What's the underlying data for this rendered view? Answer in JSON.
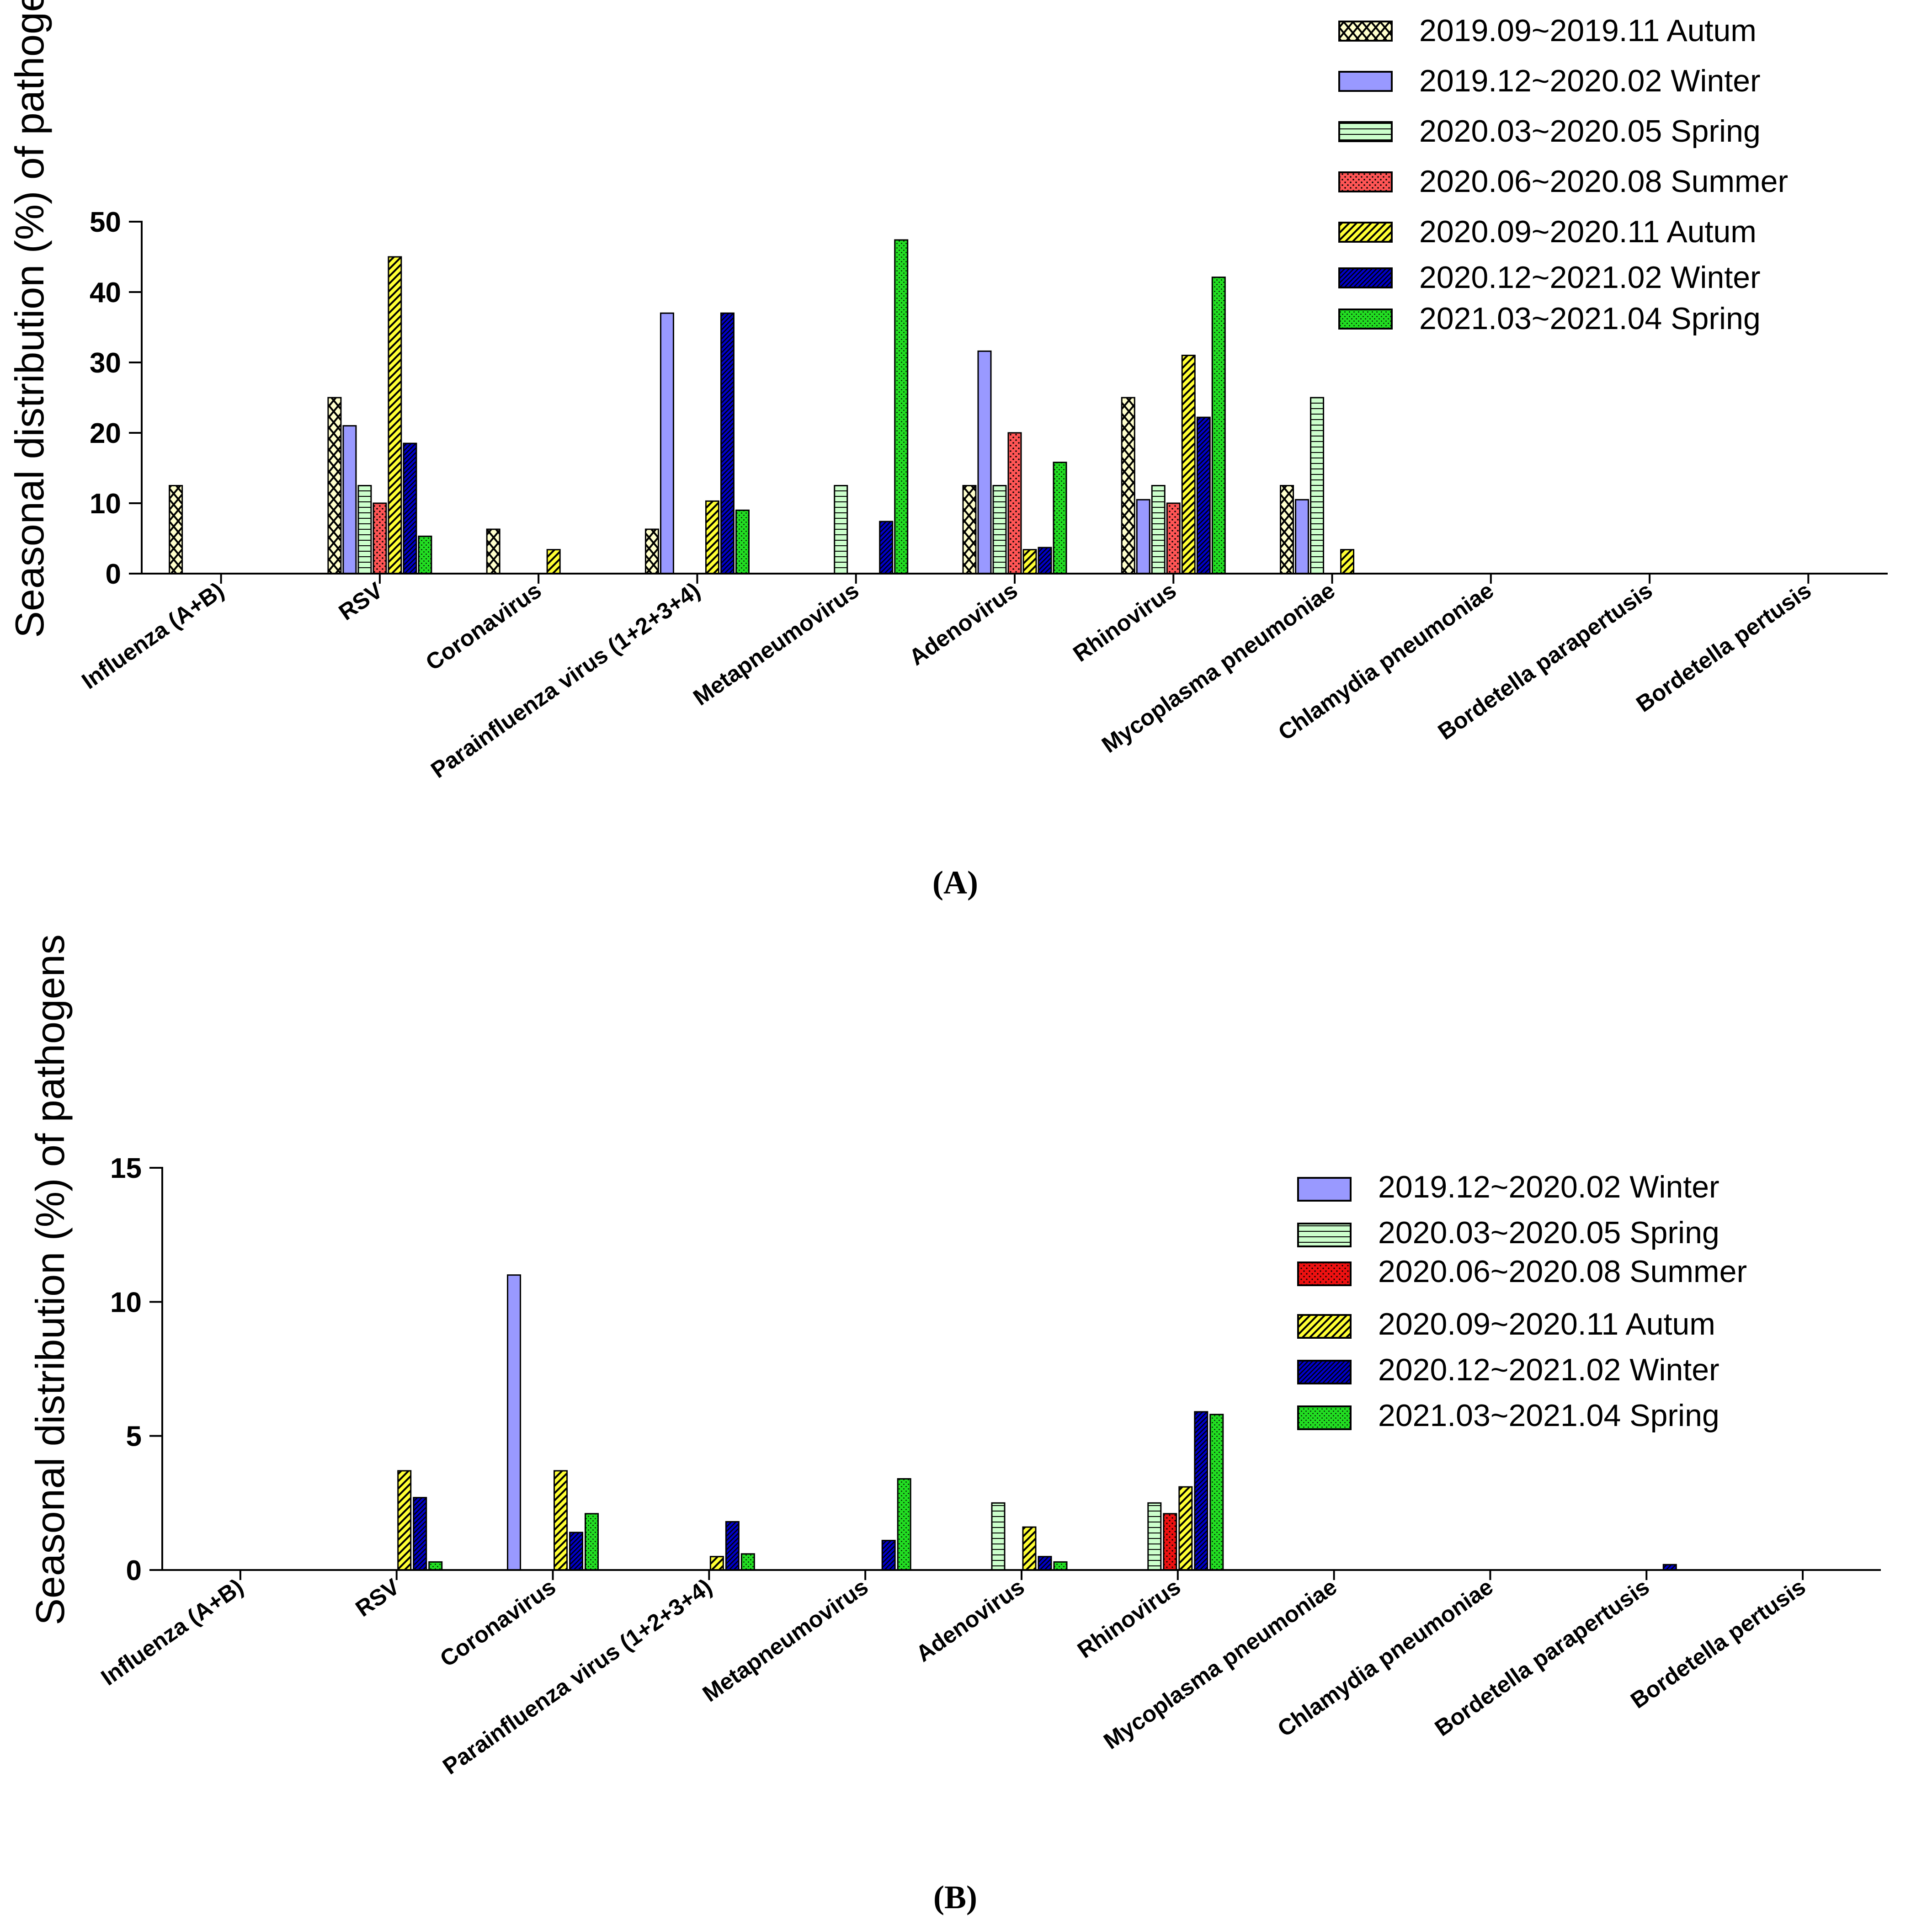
{
  "chart_data": [
    {
      "type": "bar",
      "panel_label": "(A)",
      "ylabel": "Seasonal distribution (%) of pathogens",
      "ylim": [
        0,
        50
      ],
      "yticks": [
        0,
        10,
        20,
        30,
        40,
        50
      ],
      "legend_position": "top-right",
      "categories": [
        "Influenza (A+B)",
        "RSV",
        "Coronavirus",
        "Parainfluenza virus (1+2+3+4)",
        "Metapneumovirus",
        "Adenovirus",
        "Rhinovirus",
        "Mycoplasma pneumoniae",
        "Chlamydia pneumoniae",
        "Bordetella parapertusis",
        "Bordetella pertusis"
      ],
      "series": [
        {
          "name": "2019.09~2019.11 Autum",
          "color": "#FFFFCC",
          "pattern": "crosshatch",
          "values": [
            12.5,
            25,
            6.3,
            6.3,
            0,
            12.5,
            25,
            12.5,
            0,
            0,
            0
          ]
        },
        {
          "name": "2019.12~2020.02 Winter",
          "color": "#9999FF",
          "pattern": "solid",
          "values": [
            0,
            21,
            0,
            37,
            0,
            31.6,
            10.5,
            10.5,
            0,
            0,
            0
          ]
        },
        {
          "name": "2020.03~2020.05 Spring",
          "color": "#CCFFCC",
          "pattern": "hlines",
          "values": [
            0,
            12.5,
            0,
            0,
            12.5,
            12.5,
            12.5,
            25,
            0,
            0,
            0
          ]
        },
        {
          "name": "2020.06~2020.08 Summer",
          "color": "#FF5555",
          "pattern": "dots",
          "values": [
            0,
            10,
            0,
            0,
            0,
            20,
            10,
            0,
            0,
            0,
            0
          ]
        },
        {
          "name": "2020.09~2020.11 Autum",
          "color": "#FFFF33",
          "pattern": "diag",
          "values": [
            0,
            45,
            3.4,
            10.3,
            0,
            3.4,
            31,
            3.4,
            0,
            0,
            0
          ]
        },
        {
          "name": "2020.12~2021.02 Winter",
          "color": "#0000CC",
          "pattern": "diagdense",
          "values": [
            0,
            18.5,
            0,
            37,
            7.4,
            3.7,
            22.2,
            0,
            0,
            0,
            0
          ]
        },
        {
          "name": "2021.03~2021.04 Spring",
          "color": "#22DD22",
          "pattern": "dotsfine",
          "values": [
            0,
            5.3,
            0,
            9,
            47.4,
            15.8,
            42.1,
            0,
            0,
            0,
            0
          ]
        }
      ]
    },
    {
      "type": "bar",
      "panel_label": "(B)",
      "ylabel": "Seasonal distribution (%) of pathogens",
      "ylim": [
        0,
        15
      ],
      "yticks": [
        0,
        5,
        10,
        15
      ],
      "legend_position": "right",
      "categories": [
        "Influenza (A+B)",
        "RSV",
        "Coronavirus",
        "Parainfluenza virus (1+2+3+4)",
        "Metapneumovirus",
        "Adenovirus",
        "Rhinovirus",
        "Mycoplasma pneumoniae",
        "Chlamydia pneumoniae",
        "Bordetella parapertusis",
        "Bordetella pertusis"
      ],
      "series": [
        {
          "name": "2019.12~2020.02 Winter",
          "color": "#9999FF",
          "pattern": "solid",
          "values": [
            0,
            0,
            11,
            0,
            0,
            0,
            0,
            0,
            0,
            0,
            0
          ]
        },
        {
          "name": "2020.03~2020.05 Spring",
          "color": "#CCFFCC",
          "pattern": "hlines",
          "values": [
            0,
            0,
            0,
            0,
            0,
            2.5,
            2.5,
            0,
            0,
            0,
            0
          ]
        },
        {
          "name": "2020.06~2020.08 Summer",
          "color": "#EE1111",
          "pattern": "dots",
          "values": [
            0,
            0,
            0,
            0,
            0,
            0,
            2.1,
            0,
            0,
            0,
            0
          ]
        },
        {
          "name": "2020.09~2020.11 Autum",
          "color": "#FFFF33",
          "pattern": "diag",
          "values": [
            0,
            3.7,
            3.7,
            0.5,
            0,
            1.6,
            3.1,
            0,
            0,
            0,
            0
          ]
        },
        {
          "name": "2020.12~2021.02 Winter",
          "color": "#0000CC",
          "pattern": "diagdense",
          "values": [
            0,
            2.7,
            1.4,
            1.8,
            1.1,
            0.5,
            5.9,
            0,
            0,
            0.2,
            0
          ]
        },
        {
          "name": "2021.03~2021.04 Spring",
          "color": "#22DD22",
          "pattern": "dotsfine",
          "values": [
            0,
            0.3,
            2.1,
            0.6,
            3.4,
            0.3,
            5.8,
            0,
            0,
            0,
            0
          ]
        }
      ]
    }
  ]
}
